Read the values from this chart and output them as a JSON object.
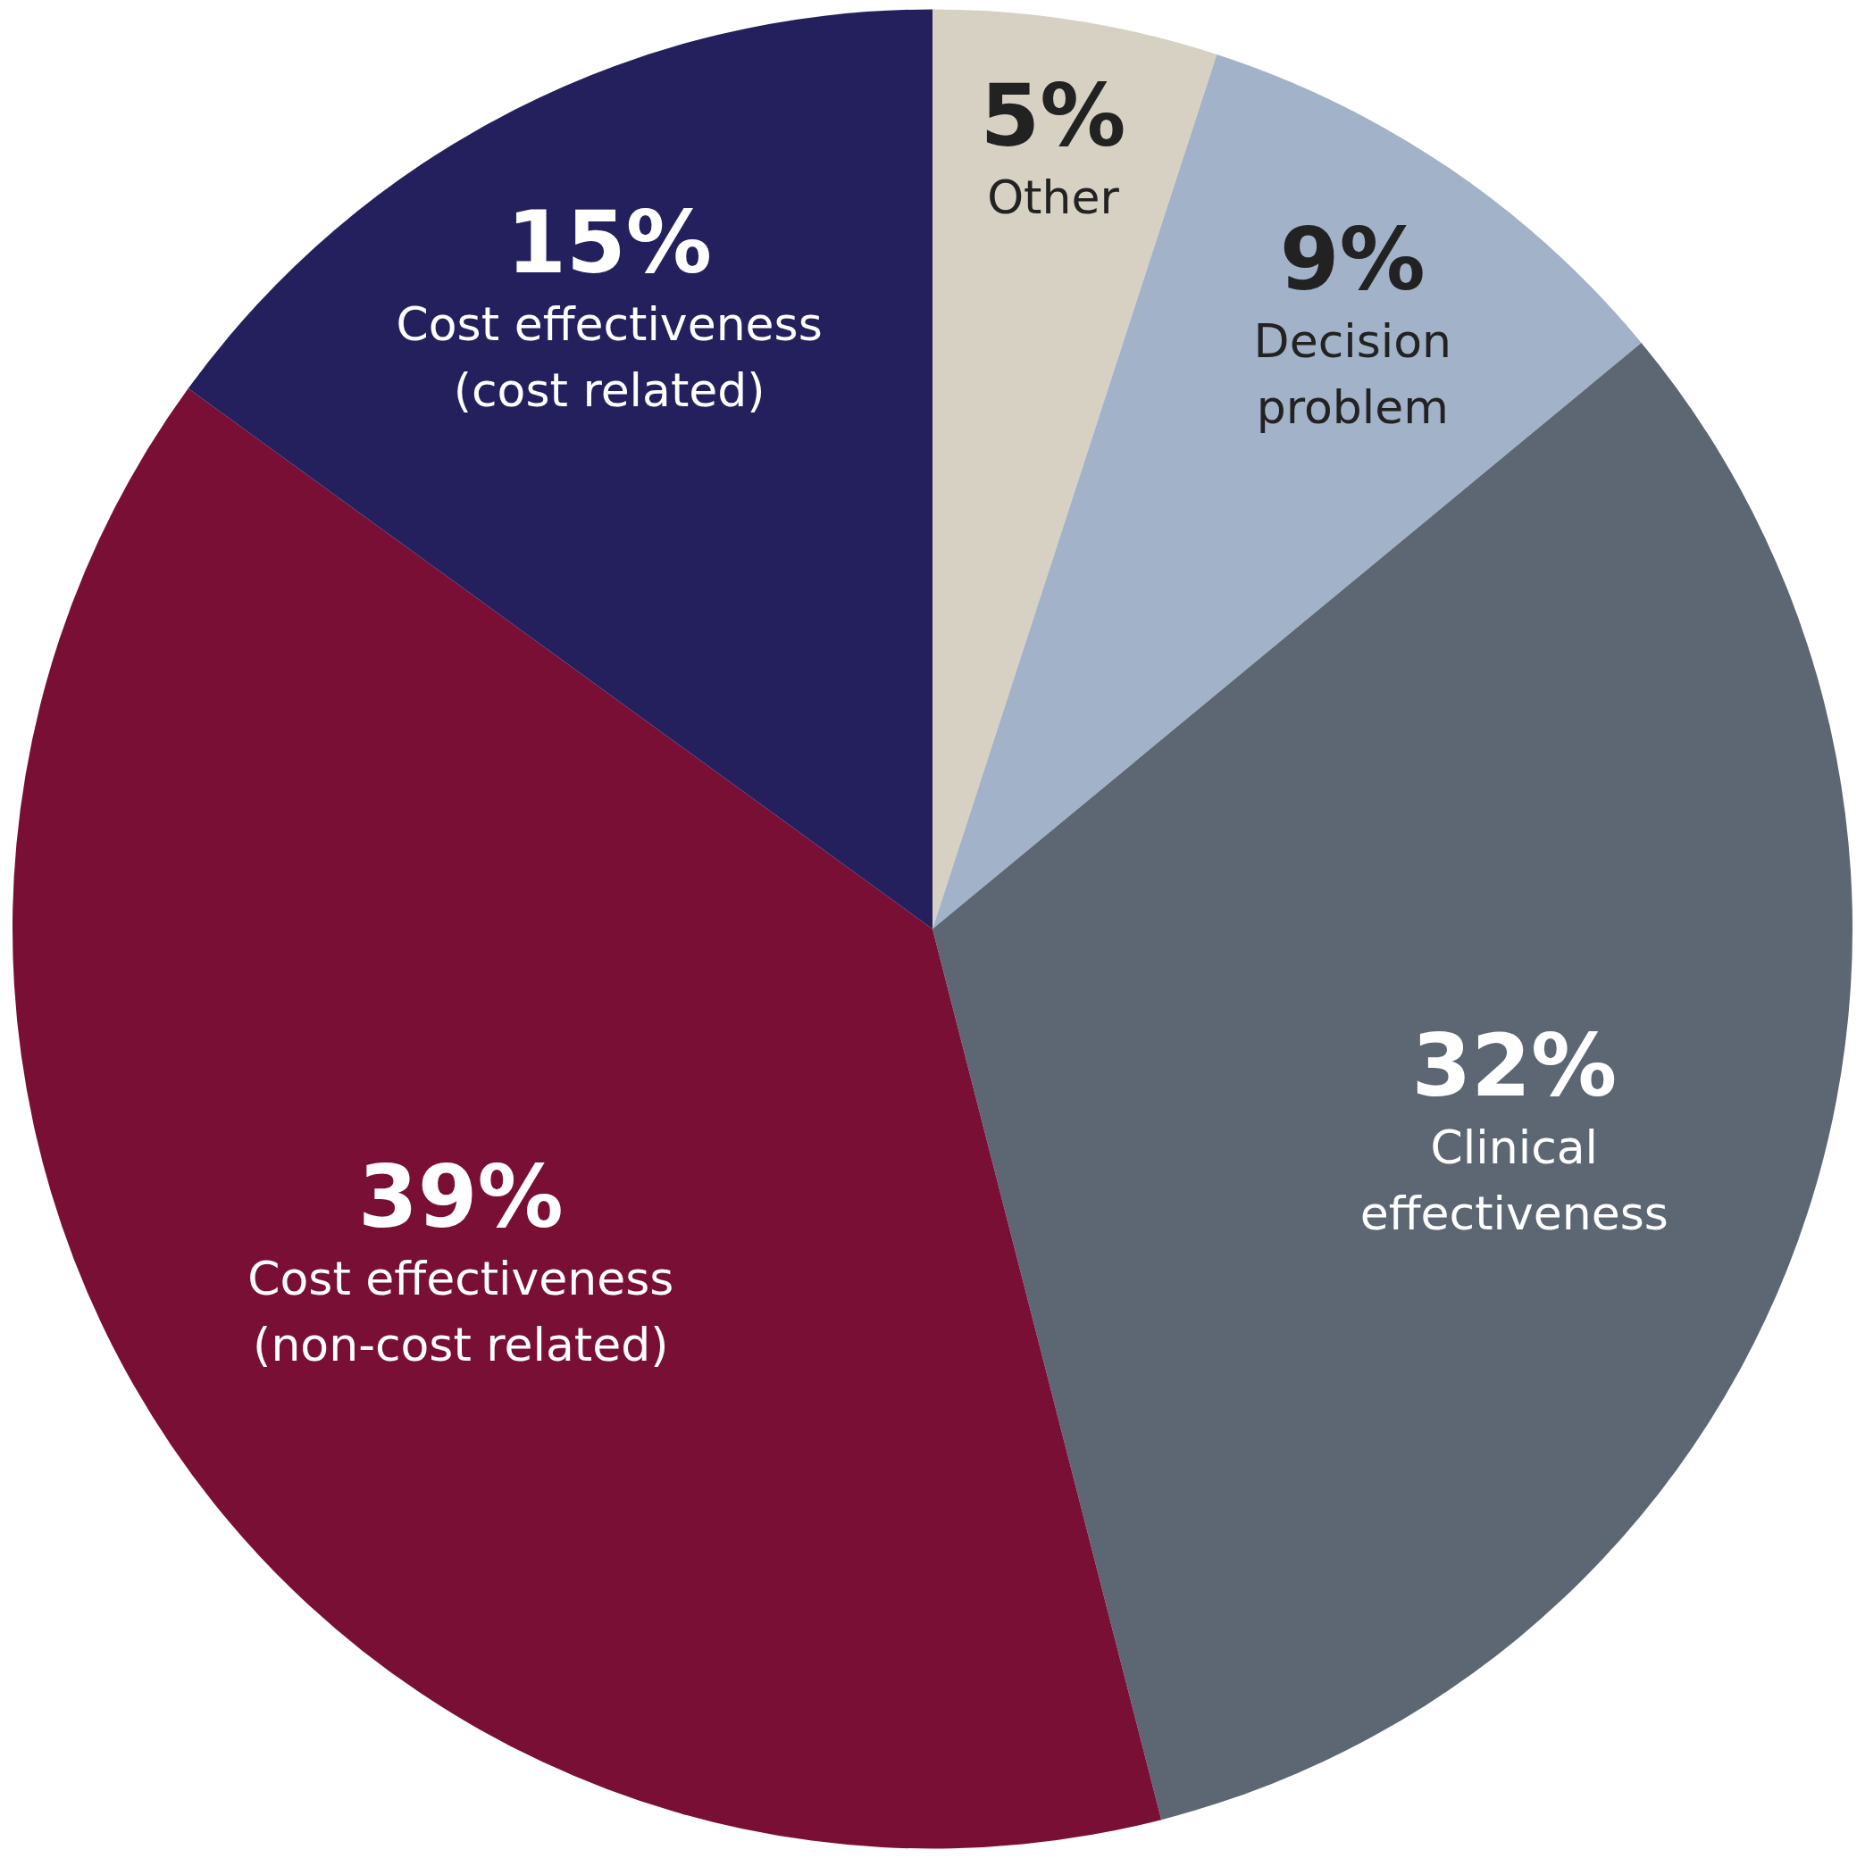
{
  "chart_data": {
    "type": "pie",
    "categories": [
      "Other",
      "Decision\nproblem",
      "Clinical\neffectiveness",
      "Cost effectiveness\n(non-cost related)",
      "Cost effectiveness\n(cost related)"
    ],
    "values": [
      5,
      9,
      32,
      39,
      15
    ],
    "value_labels": [
      "5%",
      "9%",
      "32%",
      "39%",
      "15%"
    ],
    "colors": [
      "#d6d1c2",
      "#a2b2c8",
      "#5c6773",
      "#7a0f35",
      "#24205e"
    ]
  }
}
